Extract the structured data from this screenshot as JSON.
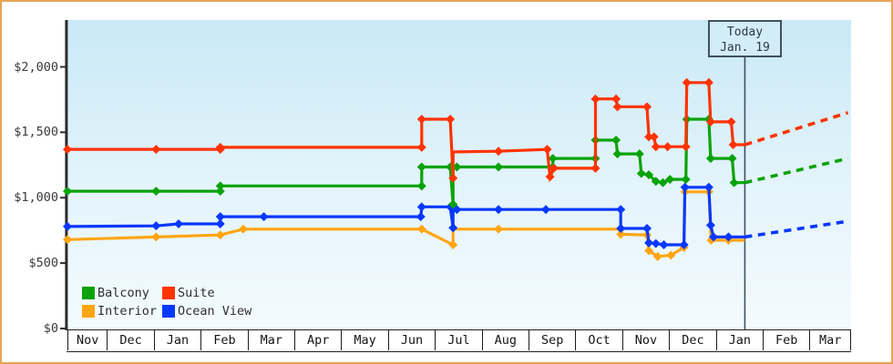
{
  "chart_data": {
    "type": "line",
    "title": "",
    "description": "Cruise cabin price history by category with today marker and dashed price projections",
    "y_axis": {
      "min": 0,
      "max": 2400,
      "tick_values": [
        0,
        500,
        1000,
        1500,
        2000
      ],
      "tick_labels": [
        "$0",
        "$500",
        "$1,000",
        "$1,500",
        "$2,000"
      ],
      "grid": false
    },
    "x_axis": {
      "unit": "month",
      "labels": [
        "Nov",
        "Dec",
        "Jan",
        "Feb",
        "Mar",
        "Apr",
        "May",
        "Jun",
        "Jul",
        "Aug",
        "Sep",
        "Oct",
        "Nov",
        "Dec",
        "Jan",
        "Feb",
        "Mar"
      ]
    },
    "today_marker": {
      "label_line1": "Today",
      "label_line2": "Jan. 19",
      "month_index": 14.6
    },
    "axis_color": "#2b2b2b",
    "today_color": "#405060",
    "frame_border_color": "#e8a556",
    "series": [
      {
        "name": "Balcony",
        "color": "#09a309",
        "z": 3,
        "points": [
          [
            0.136,
            1050,
            1
          ],
          [
            2.03,
            1050,
            1
          ],
          [
            3.4,
            1050,
            1
          ],
          [
            3.4,
            1090,
            1
          ],
          [
            7.7,
            1090,
            1
          ],
          [
            7.7,
            1235,
            1
          ],
          [
            8.31,
            1235,
            1
          ],
          [
            8.37,
            950,
            1
          ],
          [
            8.37,
            1235,
            0
          ],
          [
            8.45,
            1235,
            1
          ],
          [
            9.34,
            1235,
            1
          ],
          [
            10.5,
            1235,
            1
          ],
          [
            10.5,
            1300,
            1
          ],
          [
            11.41,
            1300,
            1
          ],
          [
            11.41,
            1440,
            1
          ],
          [
            11.85,
            1440,
            1
          ],
          [
            11.88,
            1335,
            1
          ],
          [
            12.35,
            1335,
            1
          ],
          [
            12.39,
            1185,
            1
          ],
          [
            12.55,
            1175,
            1
          ],
          [
            12.7,
            1125,
            1
          ],
          [
            12.85,
            1115,
            1
          ],
          [
            13.0,
            1140,
            1
          ],
          [
            13.34,
            1140,
            1
          ],
          [
            13.36,
            1600,
            1
          ],
          [
            13.83,
            1600,
            1
          ],
          [
            13.87,
            1300,
            1
          ],
          [
            14.33,
            1300,
            1
          ],
          [
            14.37,
            1115,
            1
          ],
          [
            14.6,
            1115,
            0
          ]
        ]
      },
      {
        "name": "Suite",
        "color": "#ff3300",
        "z": 4,
        "points": [
          [
            0.136,
            1370,
            1
          ],
          [
            2.03,
            1370,
            1
          ],
          [
            3.4,
            1370,
            1
          ],
          [
            3.4,
            1385,
            1
          ],
          [
            7.7,
            1385,
            1
          ],
          [
            7.7,
            1600,
            1
          ],
          [
            8.31,
            1600,
            1
          ],
          [
            8.37,
            1150,
            1
          ],
          [
            8.37,
            1350,
            0
          ],
          [
            9.34,
            1355,
            1
          ],
          [
            10.38,
            1370,
            1
          ],
          [
            10.44,
            1160,
            1
          ],
          [
            10.52,
            1225,
            1
          ],
          [
            11.41,
            1225,
            1
          ],
          [
            11.41,
            1755,
            1
          ],
          [
            11.85,
            1755,
            1
          ],
          [
            11.88,
            1695,
            1
          ],
          [
            12.51,
            1695,
            1
          ],
          [
            12.55,
            1465,
            1
          ],
          [
            12.66,
            1465,
            1
          ],
          [
            12.7,
            1390,
            1
          ],
          [
            12.95,
            1390,
            1
          ],
          [
            13.34,
            1390,
            1
          ],
          [
            13.36,
            1880,
            1
          ],
          [
            13.83,
            1880,
            1
          ],
          [
            13.87,
            1580,
            1
          ],
          [
            14.31,
            1580,
            1
          ],
          [
            14.35,
            1405,
            1
          ],
          [
            14.6,
            1405,
            0
          ]
        ]
      },
      {
        "name": "Interior",
        "color": "#ffa513",
        "z": 1,
        "points": [
          [
            0.136,
            680,
            1
          ],
          [
            2.03,
            700,
            1
          ],
          [
            3.4,
            715,
            1
          ],
          [
            3.89,
            760,
            1
          ],
          [
            7.7,
            760,
            1
          ],
          [
            8.37,
            640,
            1
          ],
          [
            8.37,
            760,
            0
          ],
          [
            9.34,
            760,
            1
          ],
          [
            11.95,
            760,
            1
          ],
          [
            11.95,
            720,
            1
          ],
          [
            12.51,
            715,
            1
          ],
          [
            12.55,
            595,
            1
          ],
          [
            12.74,
            550,
            1
          ],
          [
            13.02,
            560,
            1
          ],
          [
            13.3,
            620,
            1
          ],
          [
            13.32,
            1045,
            1
          ],
          [
            13.83,
            1045,
            1
          ],
          [
            13.88,
            675,
            1
          ],
          [
            14.25,
            675,
            1
          ],
          [
            14.6,
            675,
            0
          ]
        ]
      },
      {
        "name": "Ocean View",
        "color": "#0838ff",
        "z": 2,
        "points": [
          [
            0.136,
            780,
            1
          ],
          [
            2.03,
            785,
            1
          ],
          [
            2.51,
            800,
            1
          ],
          [
            3.4,
            800,
            1
          ],
          [
            3.4,
            855,
            1
          ],
          [
            4.33,
            855,
            1
          ],
          [
            7.68,
            855,
            1
          ],
          [
            7.7,
            930,
            1
          ],
          [
            8.31,
            930,
            1
          ],
          [
            8.37,
            770,
            1
          ],
          [
            8.37,
            910,
            0
          ],
          [
            8.45,
            910,
            1
          ],
          [
            9.34,
            910,
            1
          ],
          [
            10.35,
            910,
            1
          ],
          [
            11.95,
            910,
            1
          ],
          [
            11.95,
            765,
            1
          ],
          [
            12.51,
            765,
            1
          ],
          [
            12.55,
            655,
            1
          ],
          [
            12.7,
            650,
            1
          ],
          [
            12.87,
            640,
            1
          ],
          [
            13.3,
            640,
            1
          ],
          [
            13.32,
            1080,
            1
          ],
          [
            13.83,
            1080,
            1
          ],
          [
            13.87,
            790,
            1
          ],
          [
            13.93,
            700,
            1
          ],
          [
            14.25,
            700,
            1
          ],
          [
            14.6,
            700,
            0
          ]
        ]
      }
    ],
    "projections": [
      {
        "series": "Suite",
        "color": "#ff3300",
        "from": [
          14.6,
          1405
        ],
        "to": [
          16.8,
          1650
        ]
      },
      {
        "series": "Balcony",
        "color": "#09a309",
        "from": [
          14.6,
          1115
        ],
        "to": [
          16.8,
          1300
        ]
      },
      {
        "series": "Ocean View",
        "color": "#0838ff",
        "from": [
          14.6,
          700
        ],
        "to": [
          16.8,
          820
        ]
      }
    ],
    "legend": {
      "rows": [
        [
          "Balcony",
          "Suite"
        ],
        [
          "Interior",
          "Ocean View"
        ]
      ]
    }
  }
}
